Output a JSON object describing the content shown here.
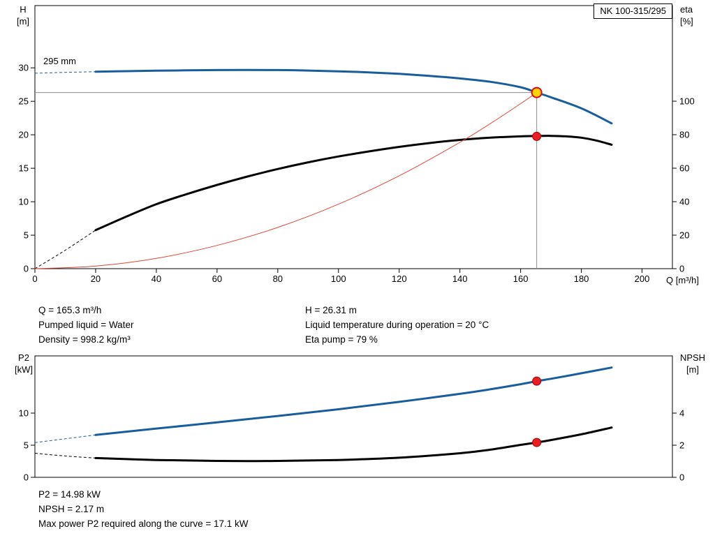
{
  "pump_model": "NK 100-315/295",
  "colors": {
    "curve_blue": "#1a5d9e",
    "curve_black": "#000000",
    "curve_red": "#e64535",
    "marker_red": "#ee1c25",
    "marker_red_edge": "#a00000",
    "duty_fill": "#ffd400",
    "duty_ring": "#e30613",
    "ref_gray": "#8c8c8c",
    "frame": "#000000"
  },
  "info_top": {
    "left": [
      "Q = 165.3 m³/h",
      "Pumped liquid = Water",
      "Density = 998.2 kg/m³"
    ],
    "right": [
      "H = 26.31 m",
      "Liquid temperature during operation = 20 °C",
      "Eta pump = 79 %"
    ]
  },
  "info_bottom": [
    "P2 = 14.98 kW",
    "NPSH = 2.17 m",
    "Max power P2 required along the curve = 17.1 kW"
  ],
  "chart_data": [
    {
      "type": "line",
      "title": "NK 100-315/295",
      "annotation": "295 mm",
      "x_axis": {
        "label": "Q [m³/h]",
        "min": 0,
        "max": 210,
        "ticks": [
          0,
          20,
          40,
          60,
          80,
          100,
          120,
          140,
          160,
          180,
          200
        ]
      },
      "y_left": {
        "label_lines": [
          "H",
          "[m]"
        ],
        "min": 0,
        "max": 39.3,
        "ticks": [
          0,
          5,
          10,
          15,
          20,
          25,
          30
        ]
      },
      "y_right": {
        "label_lines": [
          "eta",
          "[%]"
        ],
        "min": 0,
        "max": 157.1,
        "ticks": [
          0,
          20,
          40,
          60,
          80,
          100
        ]
      },
      "series": [
        {
          "name": "head-curve-295mm",
          "axis": "left",
          "color": "#1a5d9e",
          "width": 3,
          "dash_until": 20,
          "points": [
            [
              0,
              29.2
            ],
            [
              10,
              29.32
            ],
            [
              20,
              29.42
            ],
            [
              30,
              29.5
            ],
            [
              40,
              29.57
            ],
            [
              50,
              29.63
            ],
            [
              60,
              29.67
            ],
            [
              70,
              29.69
            ],
            [
              80,
              29.67
            ],
            [
              90,
              29.6
            ],
            [
              100,
              29.48
            ],
            [
              110,
              29.32
            ],
            [
              120,
              29.1
            ],
            [
              130,
              28.8
            ],
            [
              140,
              28.42
            ],
            [
              150,
              27.92
            ],
            [
              160,
              27.1
            ],
            [
              165.3,
              26.31
            ],
            [
              170,
              25.6
            ],
            [
              180,
              23.95
            ],
            [
              190,
              21.7
            ]
          ]
        },
        {
          "name": "efficiency-curve",
          "axis": "right",
          "color": "#000000",
          "width": 3,
          "dash_until": 20,
          "points": [
            [
              0,
              0
            ],
            [
              10,
              11
            ],
            [
              20,
              23
            ],
            [
              30,
              31
            ],
            [
              40,
              38.5
            ],
            [
              50,
              44.5
            ],
            [
              60,
              50
            ],
            [
              70,
              55
            ],
            [
              80,
              59.5
            ],
            [
              90,
              63.5
            ],
            [
              100,
              67
            ],
            [
              110,
              70
            ],
            [
              120,
              72.7
            ],
            [
              130,
              75
            ],
            [
              140,
              76.9
            ],
            [
              150,
              78.2
            ],
            [
              160,
              79
            ],
            [
              165.3,
              79.2
            ],
            [
              170,
              79.3
            ],
            [
              175,
              79
            ],
            [
              180,
              78.2
            ],
            [
              185,
              76.5
            ],
            [
              190,
              74
            ]
          ]
        },
        {
          "name": "duty-parabola",
          "axis": "left",
          "color": "#e64535",
          "width": 1,
          "points": [
            [
              0,
              0
            ],
            [
              20,
              0.39
            ],
            [
              40,
              1.54
            ],
            [
              60,
              3.47
            ],
            [
              80,
              6.16
            ],
            [
              100,
              9.63
            ],
            [
              120,
              13.87
            ],
            [
              140,
              18.87
            ],
            [
              150,
              21.66
            ],
            [
              160,
              24.65
            ],
            [
              165.3,
              26.31
            ]
          ]
        }
      ],
      "ref_lines": [
        {
          "type": "v",
          "x": 165.3,
          "axis": "left",
          "to_value": 26.31,
          "color": "#8c8c8c"
        },
        {
          "type": "h",
          "value": 26.31,
          "axis": "left",
          "to_x": 165.3,
          "color": "#8c8c8c"
        }
      ],
      "markers": [
        {
          "name": "duty-point",
          "x": 165.3,
          "value": 26.31,
          "axis": "left",
          "r": 7,
          "fill": "#ffd400",
          "stroke": "#e30613",
          "stroke_width": 2
        },
        {
          "name": "eta-point",
          "x": 165.3,
          "value": 79,
          "axis": "right",
          "r": 6,
          "fill": "#ee1c25",
          "stroke": "#a00000",
          "stroke_width": 1
        }
      ]
    },
    {
      "type": "line",
      "title": "",
      "x_axis": {
        "label": "",
        "min": 0,
        "max": 210,
        "ticks": []
      },
      "y_left": {
        "label_lines": [
          "P2",
          "[kW]"
        ],
        "min": 0,
        "max": 18.91,
        "ticks": [
          0,
          5,
          10
        ]
      },
      "y_right": {
        "label_lines": [
          "NPSH",
          "[m]"
        ],
        "min": 0,
        "max": 7.565,
        "ticks": [
          0,
          2,
          4
        ]
      },
      "series": [
        {
          "name": "p2-curve",
          "axis": "left",
          "color": "#1a5d9e",
          "width": 3,
          "dash_until": 20,
          "points": [
            [
              0,
              5.4
            ],
            [
              10,
              6.0
            ],
            [
              20,
              6.6
            ],
            [
              40,
              7.6
            ],
            [
              60,
              8.55
            ],
            [
              80,
              9.55
            ],
            [
              100,
              10.6
            ],
            [
              120,
              11.75
            ],
            [
              140,
              13.0
            ],
            [
              150,
              13.7
            ],
            [
              160,
              14.5
            ],
            [
              165.3,
              14.98
            ],
            [
              170,
              15.35
            ],
            [
              180,
              16.2
            ],
            [
              190,
              17.1
            ]
          ]
        },
        {
          "name": "npsh-curve",
          "axis": "right",
          "color": "#000000",
          "width": 3,
          "dash_until": 20,
          "points": [
            [
              0,
              1.5
            ],
            [
              10,
              1.33
            ],
            [
              20,
              1.2
            ],
            [
              40,
              1.08
            ],
            [
              60,
              1.02
            ],
            [
              80,
              1.02
            ],
            [
              100,
              1.08
            ],
            [
              120,
              1.22
            ],
            [
              140,
              1.5
            ],
            [
              150,
              1.72
            ],
            [
              160,
              2.02
            ],
            [
              165.3,
              2.17
            ],
            [
              170,
              2.32
            ],
            [
              180,
              2.68
            ],
            [
              190,
              3.1
            ]
          ]
        }
      ],
      "ref_lines": [],
      "markers": [
        {
          "name": "p2-point",
          "x": 165.3,
          "value": 14.98,
          "axis": "left",
          "r": 6,
          "fill": "#ee1c25",
          "stroke": "#a00000",
          "stroke_width": 1
        },
        {
          "name": "npsh-point",
          "x": 165.3,
          "value": 2.17,
          "axis": "right",
          "r": 6,
          "fill": "#ee1c25",
          "stroke": "#a00000",
          "stroke_width": 1
        }
      ]
    }
  ]
}
